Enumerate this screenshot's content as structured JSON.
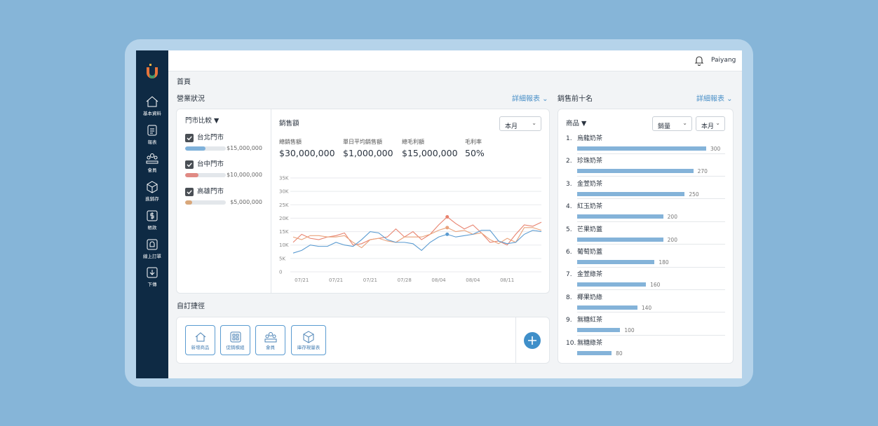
{
  "sidebar": {
    "items": [
      "基本資料",
      "報表",
      "會員",
      "進銷存",
      "帳款",
      "線上訂單",
      "下傳"
    ]
  },
  "header": {
    "user": "Paiyang"
  },
  "breadcrumb": "首頁",
  "business": {
    "title": "營業狀況",
    "link": "詳細報表",
    "store_compare": {
      "title": "門市比較 ▼",
      "stores": [
        {
          "name": "台北門市",
          "value": 15000000,
          "value_label": "$15,000,000",
          "color": "#7fb1da"
        },
        {
          "name": "台中門市",
          "value": 10000000,
          "value_label": "$10,000,000",
          "color": "#e08a84"
        },
        {
          "name": "高雄門市",
          "value": 5000000,
          "value_label": "$5,000,000",
          "color": "#d9a77a"
        }
      ]
    },
    "period": "本月",
    "kpis": [
      {
        "label": "總銷售額",
        "value": 30000000,
        "value_label": "$30,000,000"
      },
      {
        "label": "單日平均銷售額",
        "value": 1000000,
        "value_label": "$1,000,000"
      },
      {
        "label": "總毛利額",
        "value": 15000000,
        "value_label": "$15,000,000"
      },
      {
        "label": "毛利率",
        "value": 50,
        "value_label": "50%"
      }
    ]
  },
  "chart_data": {
    "type": "line",
    "title": "銷售額",
    "categories": [
      null,
      "07/21",
      null,
      null,
      null,
      "07/21",
      null,
      null,
      null,
      "07/21",
      null,
      null,
      null,
      "07/28",
      null,
      null,
      null,
      "08/04",
      null,
      null,
      null,
      "08/04",
      null,
      null,
      null,
      "08/11",
      null,
      null,
      null,
      null
    ],
    "series": [
      {
        "color": "#e8836f",
        "values": [
          11000,
          14000,
          12500,
          12000,
          13000,
          13500,
          14500,
          10000,
          10500,
          12000,
          12500,
          13000,
          16000,
          13000,
          15000,
          12000,
          14000,
          17500,
          20500,
          18000,
          16000,
          17500,
          14500,
          11000,
          11500,
          10000,
          14000,
          17500,
          17000,
          18500
        ]
      },
      {
        "color": "#e9a27b",
        "values": [
          13000,
          12000,
          13500,
          13500,
          13000,
          13000,
          13500,
          11000,
          9000,
          12000,
          12500,
          11500,
          11000,
          13000,
          13000,
          13000,
          14000,
          15500,
          16500,
          15000,
          15500,
          14000,
          14500,
          12000,
          10500,
          12500,
          11000,
          16500,
          16500,
          15500
        ]
      },
      {
        "color": "#5a9bd1",
        "values": [
          7000,
          8000,
          10000,
          9500,
          9500,
          11000,
          10000,
          9500,
          12000,
          15000,
          14500,
          12000,
          11000,
          11000,
          10500,
          8000,
          11000,
          13000,
          14000,
          13000,
          13500,
          14000,
          15500,
          15500,
          11500,
          10500,
          11000,
          14000,
          15500,
          15000
        ]
      }
    ],
    "ylim": [
      0,
      35000
    ],
    "yticks": [
      0,
      {
        "value": 5000,
        "label": "5K"
      },
      {
        "value": 10000,
        "label": "10K"
      },
      {
        "value": 15000,
        "label": "15K"
      },
      {
        "value": 20000,
        "label": "20K"
      },
      {
        "value": 25000,
        "label": "25K"
      },
      {
        "value": 30000,
        "label": "30K"
      },
      {
        "value": 35000,
        "label": "35K"
      }
    ],
    "grid": true,
    "highlight_index": 18
  },
  "shortcuts": {
    "title": "自訂捷徑",
    "items": [
      "新增商品",
      "促銷模組",
      "會員",
      "庫存現量表"
    ]
  },
  "top_ten": {
    "title": "銷售前十名",
    "link": "詳細報表",
    "filter": "商品 ▼",
    "metric": "銷量",
    "period": "本月",
    "color": "#84b3d9",
    "items": [
      {
        "rank": "1.",
        "name": "烏龍奶茶",
        "value": 300
      },
      {
        "rank": "2.",
        "name": "珍珠奶茶",
        "value": 270
      },
      {
        "rank": "3.",
        "name": "金萱奶茶",
        "value": 250
      },
      {
        "rank": "4.",
        "name": "紅玉奶茶",
        "value": 200
      },
      {
        "rank": "5.",
        "name": "芒果奶蓋",
        "value": 200
      },
      {
        "rank": "6.",
        "name": "葡萄奶蓋",
        "value": 180
      },
      {
        "rank": "7.",
        "name": "金萱綠茶",
        "value": 160
      },
      {
        "rank": "8.",
        "name": "椰果奶綠",
        "value": 140
      },
      {
        "rank": "9.",
        "name": "無糖紅茶",
        "value": 100
      },
      {
        "rank": "10.",
        "name": "無糖綠茶",
        "value": 80
      }
    ]
  }
}
